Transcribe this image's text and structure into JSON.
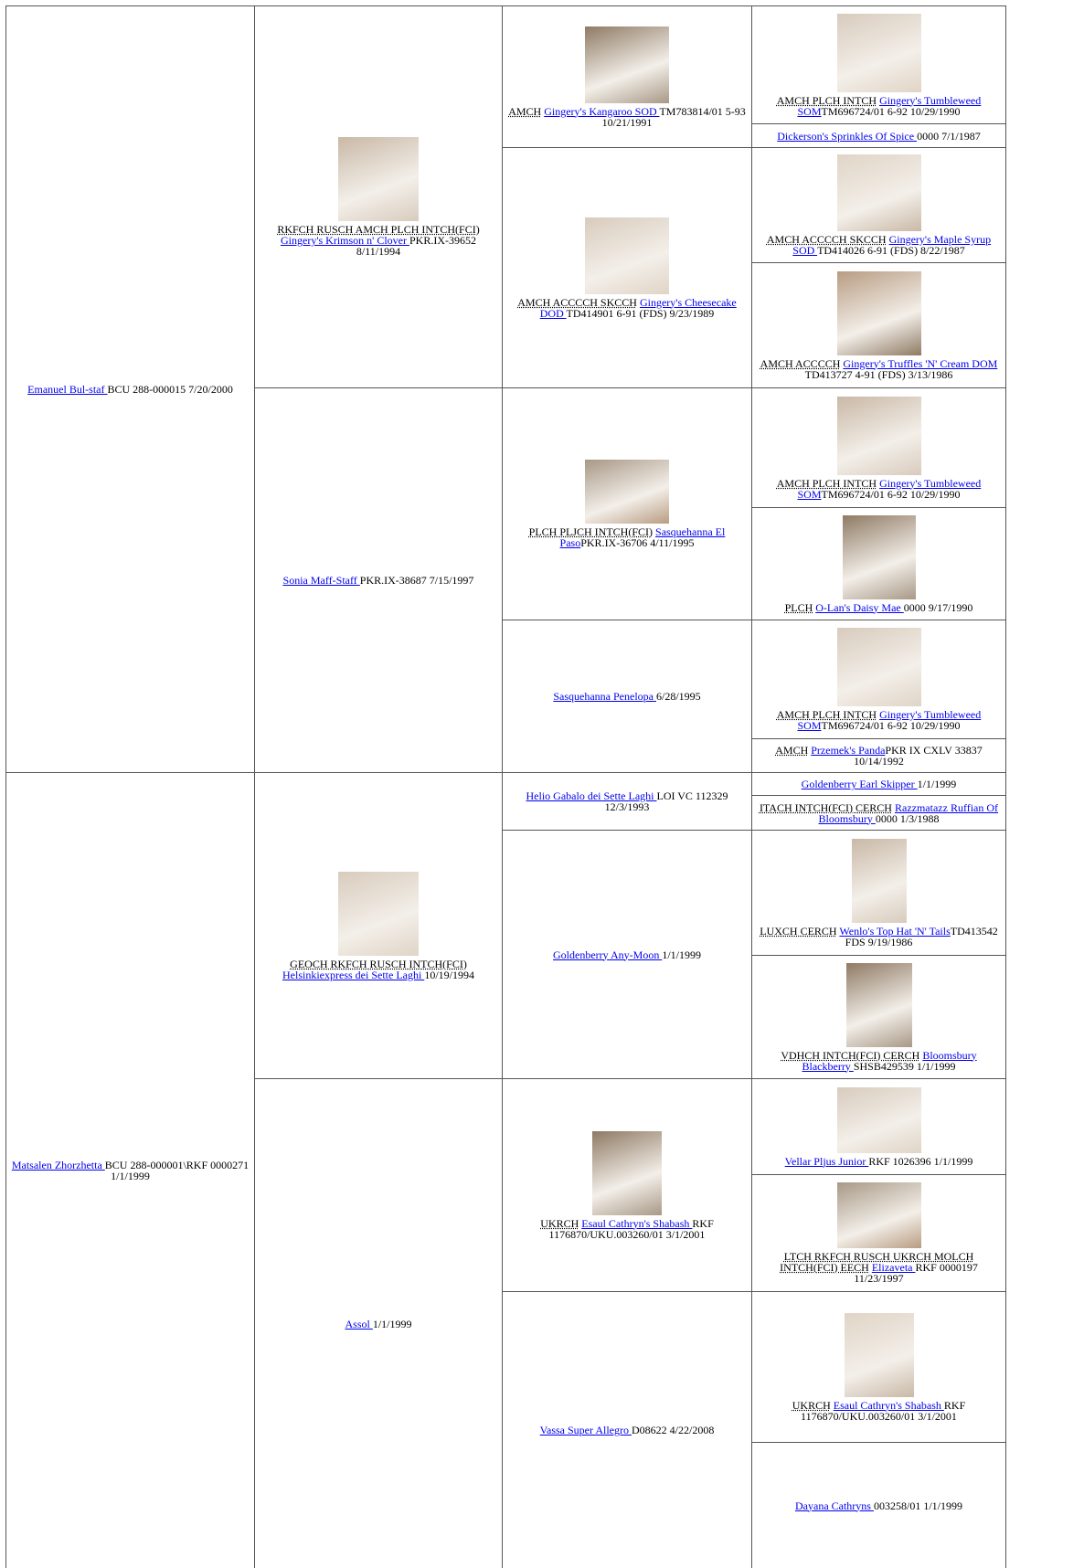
{
  "pedigree": {
    "generations": [
      [
        {
          "name": "Emanuel Bul-staf ",
          "details": "BCU 288-000015 7/20/2000"
        },
        {
          "name": "Matsalen Zhorzhetta ",
          "details": "BCU 288-000001\\RKF 0000271 1/1/1999"
        }
      ],
      [
        {
          "titles": "RKFCH RUSCH AMCH PLCH INTCH(FCI)",
          "name": "Gingery's Krimson n' Clover ",
          "details": "PKR.IX-39652 8/11/1994"
        },
        {
          "name": "Sonia Maff-Staff ",
          "details": "PKR.IX-38687 7/15/1997"
        },
        {
          "titles": "GEOCH RKFCH RUSCH INTCH(FCI)",
          "name": "Helsinkiexpress dei Sette Laghi ",
          "details": "10/19/1994"
        },
        {
          "name": "Assol ",
          "details": "1/1/1999"
        }
      ],
      [
        {
          "titles": "AMCH",
          "name": "Gingery's Kangaroo SOD ",
          "details": "TM783814/01 5-93 10/21/1991"
        },
        {
          "titles": "AMCH ACCCCH SKCCH",
          "name": "Gingery's Cheesecake DOD ",
          "details": "TD414901 6-91 (FDS) 9/23/1989"
        },
        {
          "titles": "PLCH PLJCH INTCH(FCI)",
          "name": "Sasquehanna El Paso",
          "details": "PKR.IX-36706 4/11/1995"
        },
        {
          "name": "Sasquehanna Penelopa ",
          "details": "6/28/1995"
        },
        {
          "name": "Helio Gabalo dei Sette Laghi ",
          "details": "LOI VC 112329 12/3/1993"
        },
        {
          "name": "Goldenberry Any-Moon ",
          "details": "1/1/1999"
        },
        {
          "titles": "UKRCH",
          "name": "Esaul Cathryn's Shabash ",
          "details": "RKF 1176870/UKU.003260/01 3/1/2001"
        },
        {
          "name": "Vassa Super Allegro ",
          "details": "D08622 4/22/2008"
        }
      ],
      [
        {
          "titles": "AMCH PLCH INTCH",
          "name": "Gingery's Tumbleweed SOM",
          "details": "TM696724/01 6-92 10/29/1990"
        },
        {
          "name": "Dickerson's Sprinkles Of Spice ",
          "details": "0000 7/1/1987"
        },
        {
          "titles": "AMCH ACCCCH SKCCH",
          "name": "Gingery's Maple Syrup SOD ",
          "details": "TD414026 6-91 (FDS) 8/22/1987"
        },
        {
          "titles": "AMCH ACCCCH",
          "name": "Gingery's Truffles 'N' Cream DOM ",
          "details": "TD413727 4-91 (FDS) 3/13/1986"
        },
        {
          "titles": "AMCH PLCH INTCH",
          "name": "Gingery's Tumbleweed SOM",
          "details": "TM696724/01 6-92 10/29/1990"
        },
        {
          "titles": "PLCH",
          "name": "O-Lan's Daisy Mae ",
          "details": "0000 9/17/1990"
        },
        {
          "titles": "AMCH PLCH INTCH",
          "name": "Gingery's Tumbleweed SOM",
          "details": "TM696724/01 6-92 10/29/1990"
        },
        {
          "titles": "AMCH",
          "name": "Przemek's Panda",
          "details": "PKR IX CXLV 33837 10/14/1992"
        },
        {
          "name": "Goldenberry Earl Skipper ",
          "details": "1/1/1999"
        },
        {
          "titles": "ITACH INTCH(FCI) CERCH",
          "name": "Razzmatazz Ruffian Of Bloomsbury ",
          "details": "0000 1/3/1988"
        },
        {
          "titles": "LUXCH CERCH",
          "name": "Wenlo's Top Hat 'N' Tails",
          "details": "TD413542 FDS 9/19/1986"
        },
        {
          "titles": "VDHCH INTCH(FCI) CERCH",
          "name": "Bloomsbury Blackberry ",
          "details": "SHSB429539 1/1/1999"
        },
        {
          "name": "Vellar Pljus Junior ",
          "details": "RKF 1026396 1/1/1999"
        },
        {
          "titles": "LTCH RKFCH RUSCH UKRCH MOLCH INTCH(FCI) EECH",
          "name": "Elizaveta ",
          "details": "RKF 0000197 11/23/1997"
        },
        {
          "titles": "UKRCH",
          "name": "Esaul Cathryn's Shabash ",
          "details": "RKF 1176870/UKU.003260/01 3/1/2001"
        },
        {
          "name": "Dayana Cathryns ",
          "details": "003258/01 1/1/1999"
        }
      ]
    ]
  }
}
